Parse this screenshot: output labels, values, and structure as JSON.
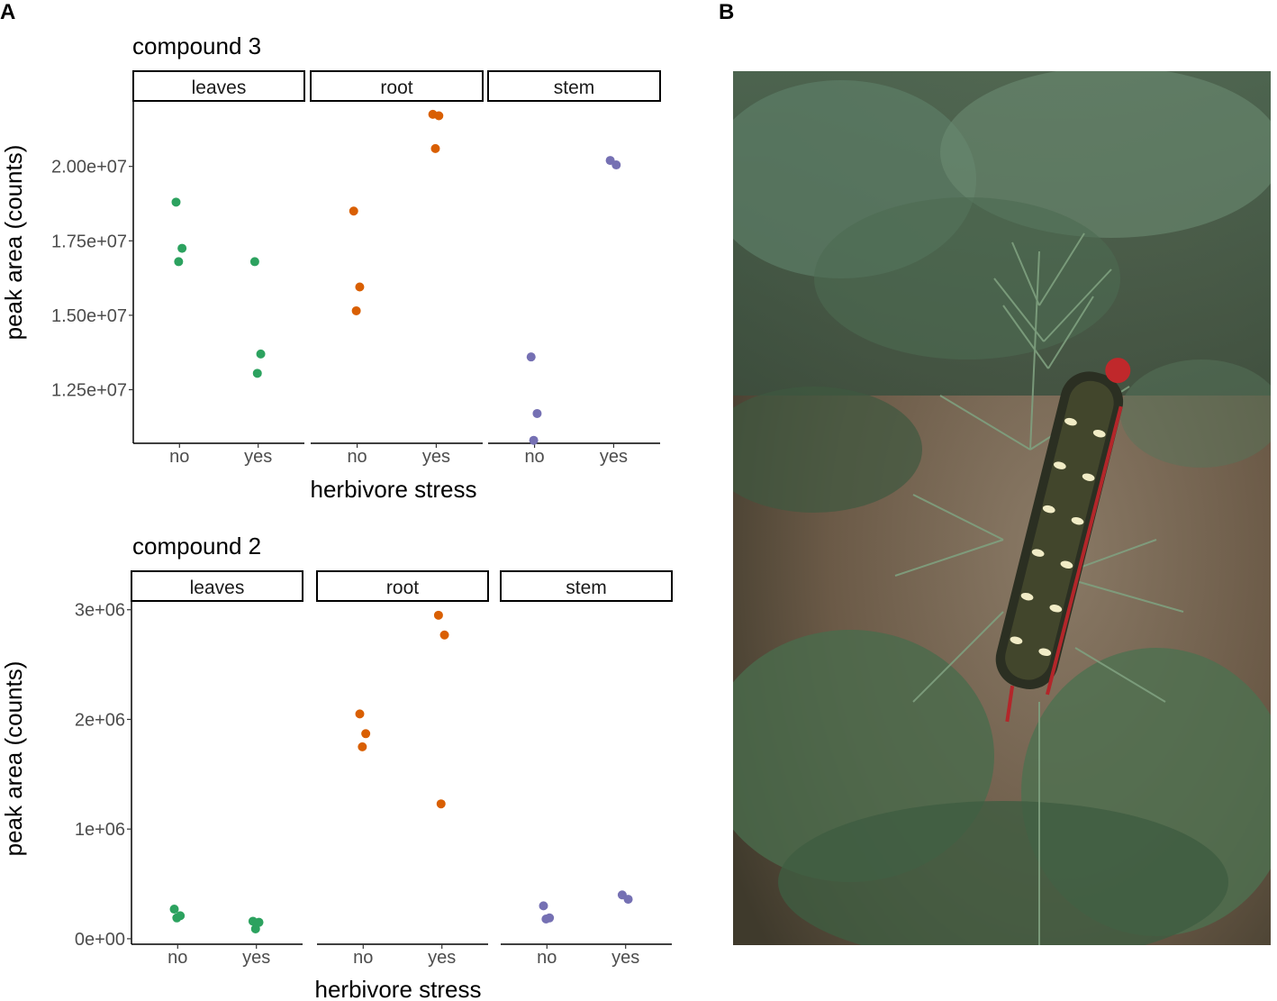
{
  "figure": {
    "panel_a_label": "A",
    "panel_b_label": "B"
  },
  "colors": {
    "leaves": "#2ca25f",
    "root": "#d95f02",
    "stem": "#7570b3"
  },
  "chart_data": [
    {
      "type": "scatter",
      "title": "compound 3",
      "xlabel": "herbivore stress",
      "ylabel": "peak area (counts)",
      "facets": [
        "leaves",
        "root",
        "stem"
      ],
      "categories": [
        "no",
        "yes"
      ],
      "ylim": [
        10700000,
        22200000
      ],
      "yticks": [
        12500000,
        15000000,
        17500000,
        20000000
      ],
      "ytick_labels": [
        "1.25e+07",
        "1.50e+07",
        "1.75e+07",
        "2.00e+07"
      ],
      "grid": false,
      "points": [
        {
          "facet": "leaves",
          "x": "no",
          "y": 18800000
        },
        {
          "facet": "leaves",
          "x": "no",
          "y": 17250000
        },
        {
          "facet": "leaves",
          "x": "no",
          "y": 16800000
        },
        {
          "facet": "leaves",
          "x": "yes",
          "y": 16800000
        },
        {
          "facet": "leaves",
          "x": "yes",
          "y": 13700000
        },
        {
          "facet": "leaves",
          "x": "yes",
          "y": 13050000
        },
        {
          "facet": "root",
          "x": "no",
          "y": 18500000
        },
        {
          "facet": "root",
          "x": "no",
          "y": 15950000
        },
        {
          "facet": "root",
          "x": "no",
          "y": 15150000
        },
        {
          "facet": "root",
          "x": "yes",
          "y": 21750000
        },
        {
          "facet": "root",
          "x": "yes",
          "y": 21700000
        },
        {
          "facet": "root",
          "x": "yes",
          "y": 20600000
        },
        {
          "facet": "stem",
          "x": "no",
          "y": 13600000
        },
        {
          "facet": "stem",
          "x": "no",
          "y": 11700000
        },
        {
          "facet": "stem",
          "x": "no",
          "y": 10800000
        },
        {
          "facet": "stem",
          "x": "yes",
          "y": 20200000
        },
        {
          "facet": "stem",
          "x": "yes",
          "y": 20050000
        }
      ]
    },
    {
      "type": "scatter",
      "title": "compound 2",
      "xlabel": "herbivore stress",
      "ylabel": "peak area (counts)",
      "facets": [
        "leaves",
        "root",
        "stem"
      ],
      "categories": [
        "no",
        "yes"
      ],
      "ylim": [
        -50000,
        3080000
      ],
      "yticks": [
        0,
        1000000,
        2000000,
        3000000
      ],
      "ytick_labels": [
        "0e+00",
        "1e+06",
        "2e+06",
        "3e+06"
      ],
      "grid": false,
      "points": [
        {
          "facet": "leaves",
          "x": "no",
          "y": 270000
        },
        {
          "facet": "leaves",
          "x": "no",
          "y": 210000
        },
        {
          "facet": "leaves",
          "x": "no",
          "y": 190000
        },
        {
          "facet": "leaves",
          "x": "yes",
          "y": 160000
        },
        {
          "facet": "leaves",
          "x": "yes",
          "y": 150000
        },
        {
          "facet": "leaves",
          "x": "yes",
          "y": 90000
        },
        {
          "facet": "root",
          "x": "no",
          "y": 2050000
        },
        {
          "facet": "root",
          "x": "no",
          "y": 1870000
        },
        {
          "facet": "root",
          "x": "no",
          "y": 1750000
        },
        {
          "facet": "root",
          "x": "yes",
          "y": 2950000
        },
        {
          "facet": "root",
          "x": "yes",
          "y": 2770000
        },
        {
          "facet": "root",
          "x": "yes",
          "y": 1230000
        },
        {
          "facet": "stem",
          "x": "no",
          "y": 300000
        },
        {
          "facet": "stem",
          "x": "no",
          "y": 190000
        },
        {
          "facet": "stem",
          "x": "no",
          "y": 180000
        },
        {
          "facet": "stem",
          "x": "yes",
          "y": 400000
        },
        {
          "facet": "stem",
          "x": "yes",
          "y": 360000
        }
      ]
    }
  ]
}
